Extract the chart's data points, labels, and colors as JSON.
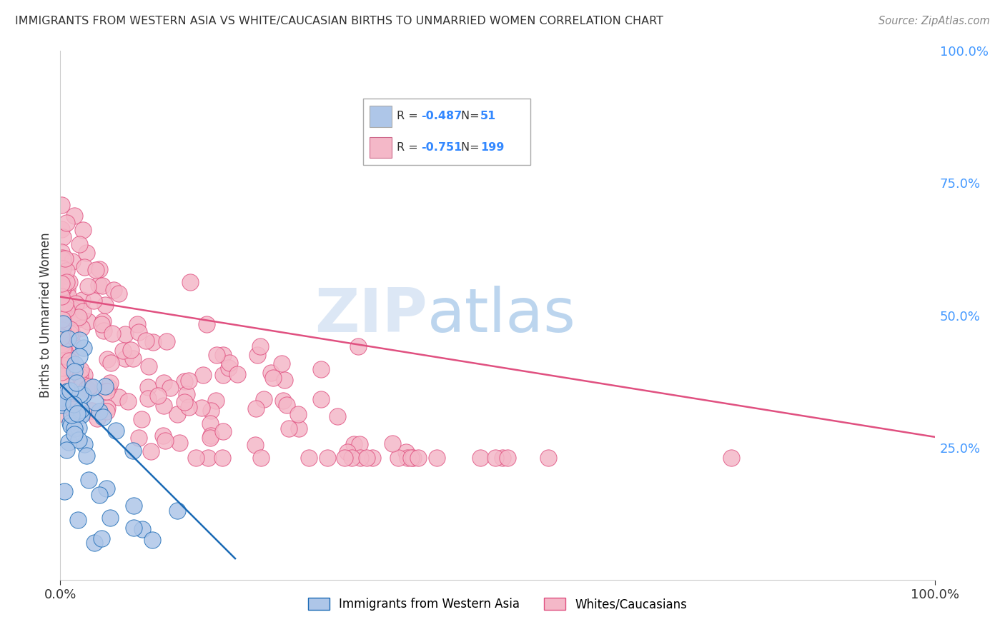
{
  "title": "IMMIGRANTS FROM WESTERN ASIA VS WHITE/CAUCASIAN BIRTHS TO UNMARRIED WOMEN CORRELATION CHART",
  "source": "Source: ZipAtlas.com",
  "ylabel": "Births to Unmarried Women",
  "watermark_zip": "ZIP",
  "watermark_atlas": "atlas",
  "legend_blue_label": "Immigrants from Western Asia",
  "legend_pink_label": "Whites/Caucasians",
  "R_blue": -0.487,
  "N_blue": 51,
  "R_pink": -0.751,
  "N_pink": 199,
  "blue_scatter_color": "#aec6e8",
  "pink_scatter_color": "#f4b8c8",
  "blue_line_color": "#1a6ab5",
  "pink_line_color": "#e05080",
  "background_color": "#ffffff",
  "grid_color": "#cccccc",
  "blue_line_x": [
    0.0,
    0.2
  ],
  "blue_line_y": [
    0.37,
    0.04
  ],
  "pink_line_x": [
    0.0,
    1.0
  ],
  "pink_line_y": [
    0.535,
    0.27
  ],
  "xlim": [
    0.0,
    1.0
  ],
  "ylim": [
    0.0,
    1.0
  ],
  "figsize": [
    14.06,
    8.92
  ],
  "dpi": 100
}
